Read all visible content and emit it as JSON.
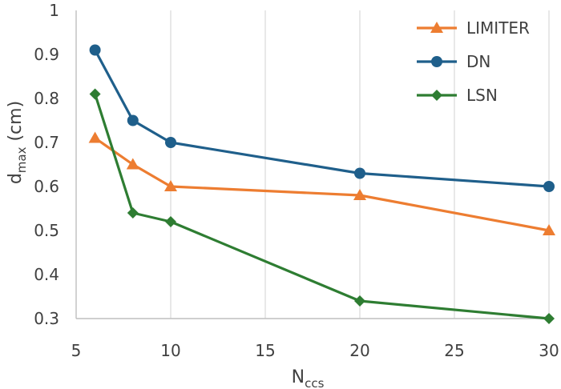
{
  "chart_data": {
    "type": "line",
    "title": "",
    "xlabel": {
      "main": "N",
      "sub": "ccs"
    },
    "ylabel": {
      "main": "d",
      "sub": "max",
      "unit": " (cm)"
    },
    "xlim": [
      5,
      30
    ],
    "ylim": [
      0.3,
      1.0
    ],
    "xticks": [
      5,
      10,
      15,
      20,
      25,
      30
    ],
    "yticks": [
      0.3,
      0.4,
      0.5,
      0.6,
      0.7,
      0.8,
      0.9,
      1.0
    ],
    "xtick_labels": [
      "5",
      "10",
      "15",
      "20",
      "25",
      "30"
    ],
    "ytick_labels": [
      "0.3",
      "0.4",
      "0.5",
      "0.6",
      "0.7",
      "0.8",
      "0.9",
      "1"
    ],
    "grid": "vertical",
    "legend_position": "top-right",
    "x": [
      6,
      8,
      10,
      20,
      30
    ],
    "series": [
      {
        "name": "LIMITER",
        "values": [
          0.71,
          0.65,
          0.6,
          0.58,
          0.5
        ],
        "color": "#ed7d31",
        "marker": "triangle"
      },
      {
        "name": "DN",
        "values": [
          0.91,
          0.75,
          0.7,
          0.63,
          0.6
        ],
        "color": "#1f5f8b",
        "marker": "circle"
      },
      {
        "name": "LSN",
        "values": [
          0.81,
          0.54,
          0.52,
          0.34,
          0.3
        ],
        "color": "#2e7d32",
        "marker": "diamond"
      }
    ]
  }
}
